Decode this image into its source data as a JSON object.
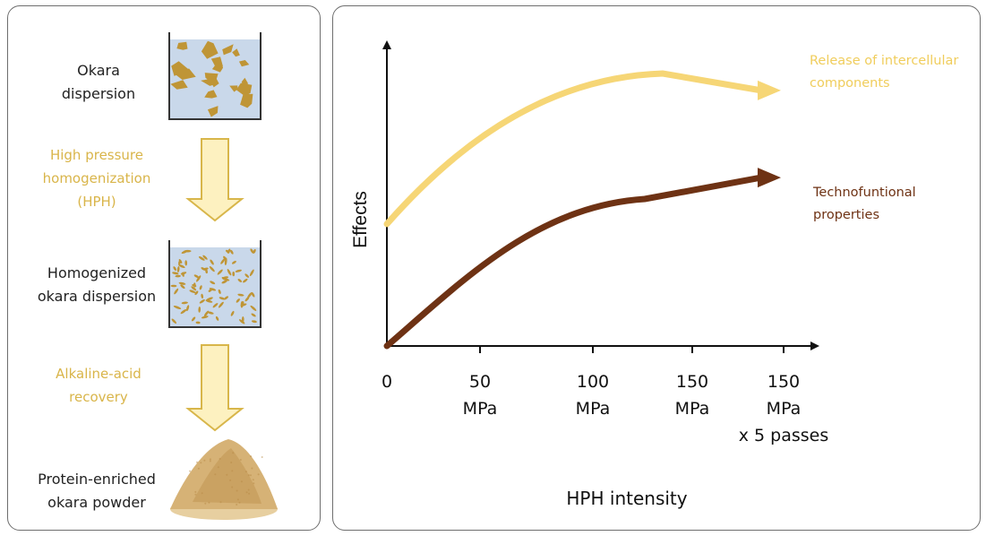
{
  "flow": {
    "stage1": [
      "Okara",
      "dispersion"
    ],
    "step1": [
      "High pressure",
      "homogenization",
      "(HPH)"
    ],
    "stage2": [
      "Homogenized",
      "okara dispersion"
    ],
    "step2": [
      "Alkaline-acid",
      "recovery"
    ],
    "stage3": [
      "Protein-enriched",
      "okara powder"
    ]
  },
  "chart_data": {
    "type": "line",
    "xlabel": "HPH intensity",
    "ylabel": "Effects",
    "x_ticks": [
      {
        "lines": [
          "0"
        ]
      },
      {
        "lines": [
          "50",
          "MPa"
        ]
      },
      {
        "lines": [
          "100",
          "MPa"
        ]
      },
      {
        "lines": [
          "150",
          "MPa"
        ]
      },
      {
        "lines": [
          "150",
          "MPa",
          "x 5 passes"
        ]
      }
    ],
    "series": [
      {
        "name": "Release of intercellular components",
        "label_lines": [
          "Release of intercellular",
          "components"
        ],
        "color": "#f6d676",
        "values": [
          0.42,
          0.68,
          0.85,
          0.88,
          0.88
        ]
      },
      {
        "name": "Technofuntional properties",
        "label_lines": [
          "Technofuntional",
          "properties"
        ],
        "color": "#6e3214",
        "values": [
          0.0,
          0.34,
          0.54,
          0.58,
          0.58
        ]
      }
    ]
  },
  "colors": {
    "step_text": "#d9b54a",
    "arrow_fill": "#fdf1c0",
    "arrow_stroke": "#d8b64a",
    "liquid": "#c9d8ea",
    "particle": "#bf9536",
    "powder": "#d6b276"
  }
}
